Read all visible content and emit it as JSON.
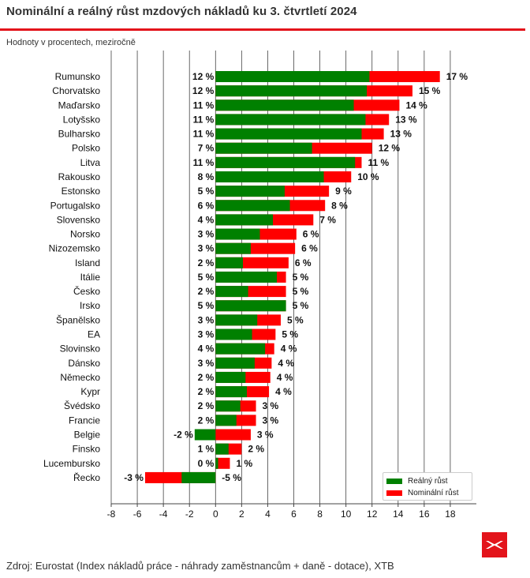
{
  "header": {
    "title": "Nominální a reálný růst mzdových nákladů ku  3. čtvrtletí 2024",
    "subtitle": "Hodnoty v procentech, meziročně"
  },
  "footer": {
    "source": "Zdroj: Eurostat (Index nákladů práce - náhrady zaměstnancům + daně - dotace), XTB"
  },
  "logo": {
    "icon": "xtb-logo-icon",
    "color": "#e3141b"
  },
  "chart_data": {
    "type": "bar",
    "orientation": "horizontal",
    "stacking": "overlay",
    "xlim": [
      -8,
      20
    ],
    "xticks": [
      -8,
      -6,
      -4,
      -2,
      0,
      2,
      4,
      6,
      8,
      10,
      12,
      14,
      16,
      18
    ],
    "grid": "vertical",
    "legend_position": "bottom-right",
    "categories": [
      "Rumunsko",
      "Chorvatsko",
      "Maďarsko",
      "Lotyšsko",
      "Bulharsko",
      "Polsko",
      "Litva",
      "Rakousko",
      "Estonsko",
      "Portugalsko",
      "Slovensko",
      "Norsko",
      "Nizozemsko",
      "Island",
      "Itálie",
      "Česko",
      "Irsko",
      "Španělsko",
      "EA",
      "Slovinsko",
      "Dánsko",
      "Německo",
      "Kypr",
      "Švédsko",
      "Francie",
      "Belgie",
      "Finsko",
      "Lucembursko",
      "Řecko"
    ],
    "series": [
      {
        "name": "Nominální růst",
        "color": "#ff0000",
        "values": [
          17.2,
          15.1,
          14.1,
          13.3,
          12.9,
          12.0,
          11.2,
          10.4,
          8.7,
          8.4,
          7.5,
          6.2,
          6.1,
          5.6,
          5.4,
          5.4,
          5.4,
          5.0,
          4.6,
          4.5,
          4.3,
          4.2,
          4.1,
          3.1,
          3.1,
          2.7,
          2.0,
          1.1,
          -5.4
        ],
        "labels": [
          "17 %",
          "15 %",
          "14 %",
          "13 %",
          "13 %",
          "12 %",
          "11 %",
          "10 %",
          "9 %",
          "8 %",
          "7 %",
          "6 %",
          "6 %",
          "6 %",
          "5 %",
          "5 %",
          "5 %",
          "5 %",
          "5 %",
          "4 %",
          "4 %",
          "4 %",
          "4 %",
          "3 %",
          "3 %",
          "3 %",
          "2 %",
          "1 %",
          "-5 %"
        ]
      },
      {
        "name": "Reálný růst",
        "color": "#008000",
        "values": [
          11.8,
          11.6,
          10.6,
          11.5,
          11.2,
          7.4,
          10.7,
          8.3,
          5.3,
          5.7,
          4.4,
          3.4,
          2.7,
          2.1,
          4.7,
          2.5,
          5.4,
          3.2,
          2.8,
          3.8,
          3.0,
          2.3,
          2.4,
          1.9,
          1.6,
          -1.6,
          1.0,
          0.2,
          -2.6
        ],
        "labels": [
          "12 %",
          "12 %",
          "11 %",
          "11 %",
          "11 %",
          "7 %",
          "11 %",
          "8 %",
          "5 %",
          "6 %",
          "4 %",
          "3 %",
          "3 %",
          "2 %",
          "5 %",
          "2 %",
          "5 %",
          "3 %",
          "3 %",
          "4 %",
          "3 %",
          "2 %",
          "2 %",
          "2 %",
          "2 %",
          "-2 %",
          "1 %",
          "0 %",
          "-3 %"
        ]
      }
    ]
  }
}
